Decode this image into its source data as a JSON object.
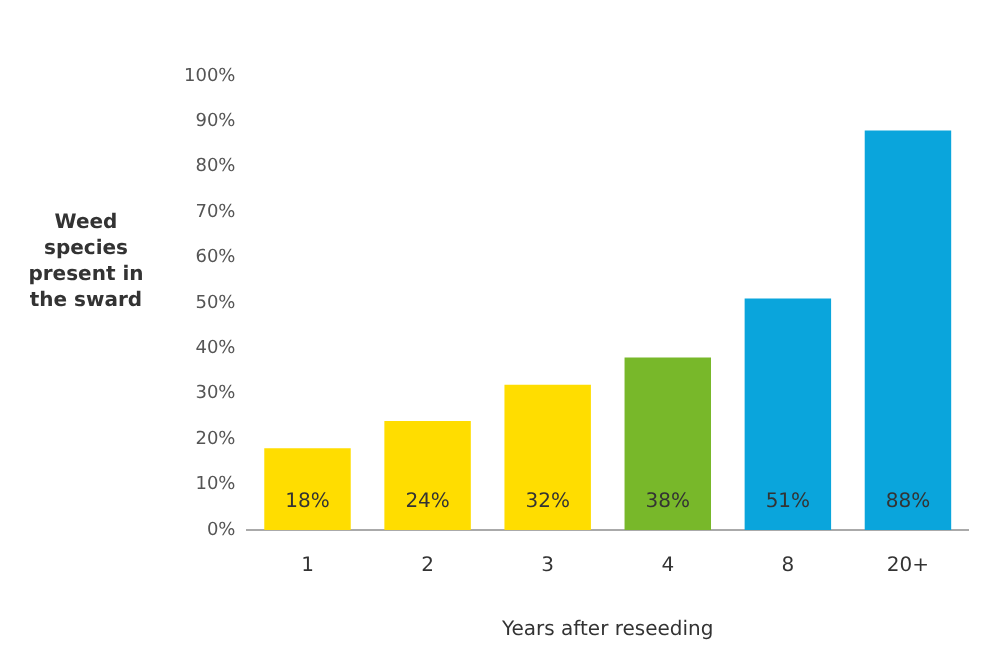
{
  "chart_data": {
    "type": "bar",
    "xlabel": "Years after reseeding",
    "ylabel": "Weed species present in the sward",
    "categories": [
      "1",
      "2",
      "3",
      "4",
      "8",
      "20+"
    ],
    "values": [
      18,
      24,
      32,
      38,
      51,
      88
    ],
    "colors": [
      "#ffdd00",
      "#ffdd00",
      "#ffdd00",
      "#78b82a",
      "#0aa5dc",
      "#0aa5dc"
    ],
    "value_labels": [
      "18%",
      "24%",
      "32%",
      "38%",
      "51%",
      "88%"
    ],
    "ylim": [
      0,
      100
    ],
    "yticks": [
      {
        "value": 0,
        "label": "0%"
      },
      {
        "value": 10,
        "label": "10%"
      },
      {
        "value": 20,
        "label": "20%"
      },
      {
        "value": 30,
        "label": "30%"
      },
      {
        "value": 40,
        "label": "40%"
      },
      {
        "value": 50,
        "label": "50%"
      },
      {
        "value": 60,
        "label": "60%"
      },
      {
        "value": 70,
        "label": "70%"
      },
      {
        "value": 80,
        "label": "80%"
      },
      {
        "value": 90,
        "label": "90%"
      },
      {
        "value": 100,
        "label": "100%"
      }
    ],
    "grid": false,
    "legend": false
  }
}
